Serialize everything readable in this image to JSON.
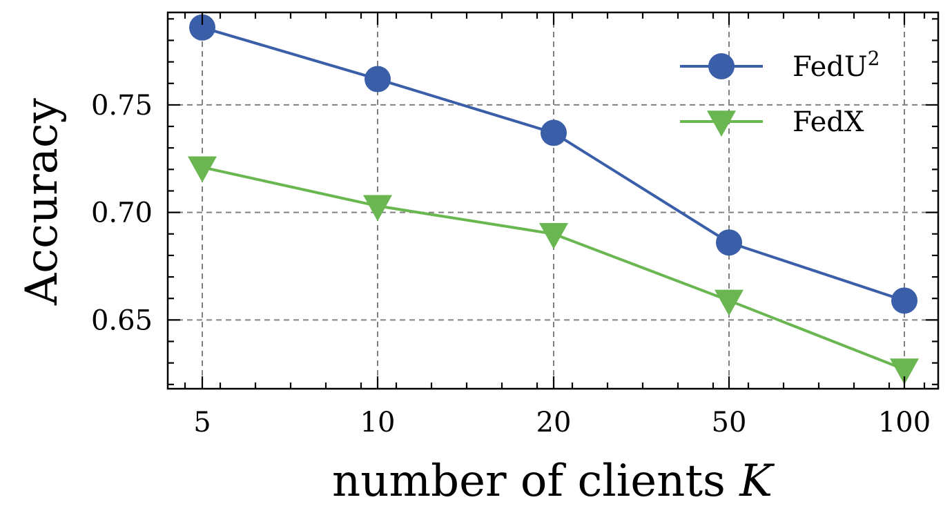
{
  "chart_data": {
    "type": "line",
    "xlabel": "number of clients",
    "xlabel_var": "K",
    "ylabel": "Accuracy",
    "x": [
      5,
      10,
      20,
      50,
      100
    ],
    "x_tick_labels": [
      "5",
      "10",
      "20",
      "50",
      "100"
    ],
    "x_scale": "categorical",
    "yticks": [
      0.65,
      0.7,
      0.75
    ],
    "y_tick_labels": [
      "0.65",
      "0.70",
      "0.75"
    ],
    "ylim": [
      0.618,
      0.793
    ],
    "grid": true,
    "legend_position": "top-right",
    "series": [
      {
        "name": "FedU",
        "name_sup": "2",
        "color": "#3a5ea8",
        "marker": "circle",
        "values": [
          0.786,
          0.762,
          0.737,
          0.686,
          0.659
        ]
      },
      {
        "name": "FedX",
        "color": "#6ab651",
        "marker": "triangle-down",
        "values": [
          0.721,
          0.703,
          0.69,
          0.659,
          0.627
        ]
      }
    ]
  }
}
